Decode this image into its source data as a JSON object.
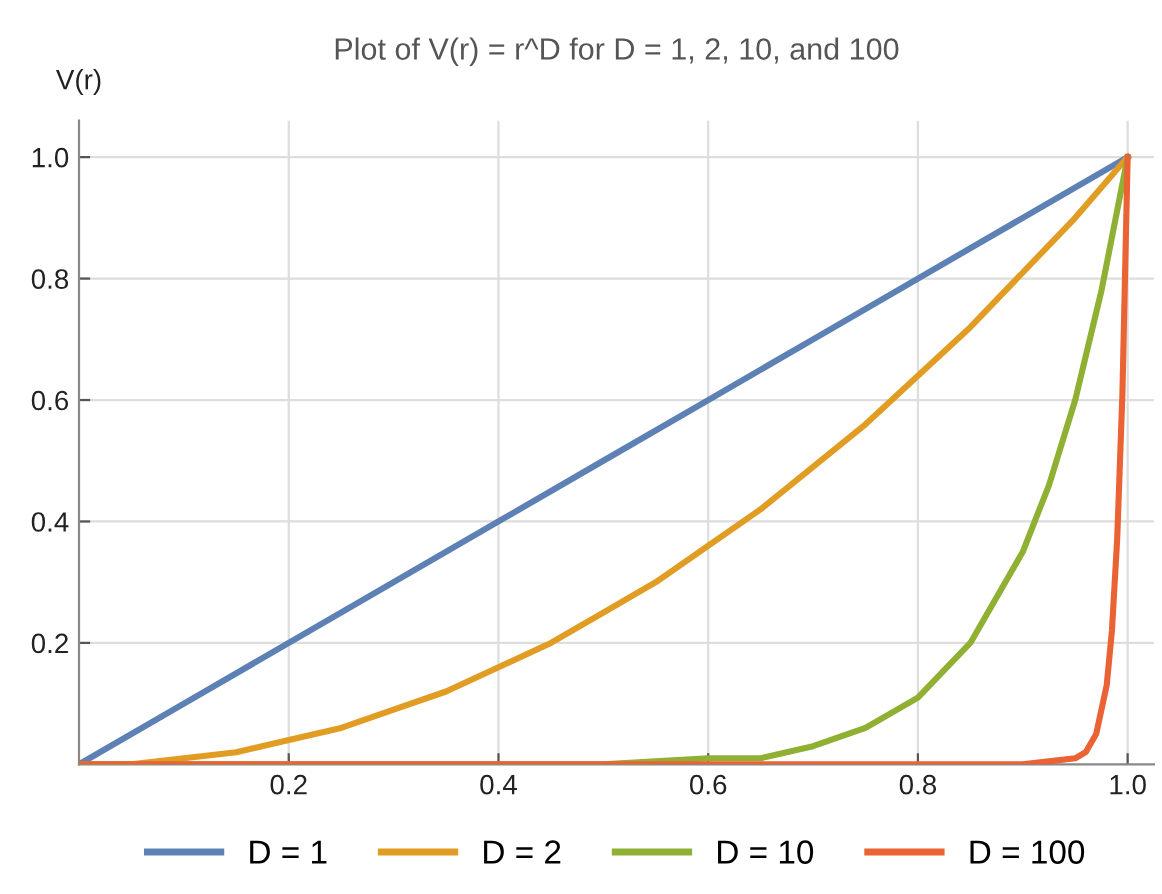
{
  "chart_data": {
    "type": "line",
    "title": "Plot of V(r) = r^D for D = 1, 2, 10, and 100",
    "ylabel": "V(r)",
    "xlim": [
      0,
      1.025
    ],
    "ylim": [
      0,
      1.06
    ],
    "xticks": [
      0.2,
      0.4,
      0.6,
      0.8,
      {
        "value": 1.0,
        "label": "1.0"
      }
    ],
    "yticks": [
      0.2,
      0.4,
      0.6,
      0.8,
      {
        "value": 1.0,
        "label": "1.0"
      }
    ],
    "grid": true,
    "legend": "bottom",
    "marker": "none",
    "line_style": "solid",
    "series": [
      {
        "name": "D = 1",
        "color": "#5e81b5",
        "x": [
          0,
          0.1,
          0.2,
          0.3,
          0.4,
          0.5,
          0.6,
          0.7,
          0.8,
          0.9,
          1.0
        ],
        "values": [
          0,
          0.1,
          0.2,
          0.3,
          0.4,
          0.5,
          0.6,
          0.7,
          0.8,
          0.9,
          1.0
        ]
      },
      {
        "name": "D = 2",
        "color": "#e19c24",
        "x": [
          0,
          0.05,
          0.1,
          0.15,
          0.2,
          0.25,
          0.3,
          0.35,
          0.4,
          0.45,
          0.5,
          0.55,
          0.6,
          0.65,
          0.7,
          0.75,
          0.8,
          0.85,
          0.9,
          0.95,
          1.0
        ],
        "values": [
          0,
          0.0,
          0.01,
          0.02,
          0.04,
          0.06,
          0.09,
          0.12,
          0.16,
          0.2,
          0.25,
          0.3,
          0.36,
          0.42,
          0.49,
          0.56,
          0.64,
          0.72,
          0.81,
          0.9,
          1.0
        ]
      },
      {
        "name": "D = 10",
        "color": "#8fb032",
        "x": [
          0,
          0.5,
          0.6,
          0.65,
          0.7,
          0.75,
          0.8,
          0.85,
          0.9,
          0.925,
          0.95,
          0.975,
          1.0
        ],
        "values": [
          0,
          0.0,
          0.01,
          0.01,
          0.03,
          0.06,
          0.11,
          0.2,
          0.35,
          0.46,
          0.6,
          0.78,
          1.0
        ]
      },
      {
        "name": "D = 100",
        "color": "#eb6235",
        "x": [
          0,
          0.9,
          0.95,
          0.96,
          0.97,
          0.98,
          0.985,
          0.99,
          0.995,
          1.0
        ],
        "values": [
          0,
          0.0,
          0.01,
          0.02,
          0.05,
          0.13,
          0.22,
          0.37,
          0.61,
          1.0
        ]
      }
    ]
  }
}
